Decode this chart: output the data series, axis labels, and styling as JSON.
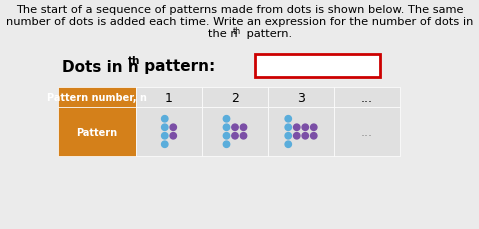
{
  "bg_color": "#ebebeb",
  "box_color": "#cc0000",
  "header_bg": "#d4801a",
  "header_text": "Pattern number, n",
  "row2_label": "Pattern",
  "col_numbers": [
    "1",
    "2",
    "3",
    "..."
  ],
  "blue_color": "#5aaddb",
  "purple_color": "#7b4fa6",
  "cell_bg": "#e0e0e0",
  "font_size_title": 8.2,
  "font_size_label": 11,
  "font_size_header": 7.0,
  "font_size_colnum": 9,
  "dots_ellipsis_color": "#888888"
}
